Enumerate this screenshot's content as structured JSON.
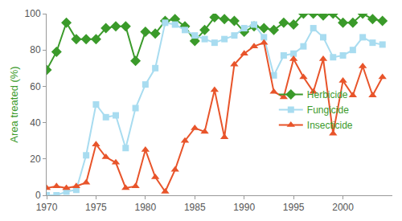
{
  "chart_data": {
    "type": "line",
    "x": [
      1970,
      1971,
      1972,
      1973,
      1974,
      1975,
      1976,
      1977,
      1978,
      1979,
      1980,
      1981,
      1982,
      1983,
      1984,
      1985,
      1986,
      1987,
      1988,
      1989,
      1990,
      1991,
      1992,
      1993,
      1994,
      1995,
      1996,
      1997,
      1998,
      1999,
      2000,
      2001,
      2002,
      2003,
      2004
    ],
    "y_label": "Area treated (%)",
    "series": [
      {
        "name": "Herbicide",
        "color": "#3a9a2a",
        "marker": "diamond",
        "values": [
          69,
          79,
          95,
          86,
          86,
          86,
          92,
          93,
          93,
          74,
          90,
          89,
          96,
          97,
          93,
          85,
          91,
          98,
          97,
          96,
          90,
          93,
          92,
          91,
          95,
          94,
          100,
          100,
          99,
          100,
          95,
          95,
          100,
          97,
          96
        ]
      },
      {
        "name": "Fungicide",
        "color": "#a8dcf0",
        "marker": "square",
        "values": [
          0,
          0,
          2,
          3,
          22,
          50,
          43,
          44,
          26,
          48,
          61,
          70,
          95,
          94,
          91,
          88,
          86,
          84,
          86,
          88,
          92,
          94,
          87,
          66,
          77,
          78,
          82,
          92,
          87,
          76,
          77,
          80,
          87,
          84,
          83
        ]
      },
      {
        "name": "Insecticide",
        "color": "#e8542a",
        "marker": "triangle",
        "values": [
          4,
          5,
          4,
          5,
          7,
          28,
          21,
          18,
          4,
          5,
          25,
          10,
          2,
          14,
          30,
          37,
          35,
          58,
          32,
          72,
          78,
          82,
          84,
          57,
          54,
          75,
          65,
          57,
          75,
          34,
          63,
          55,
          71,
          55,
          65
        ]
      }
    ],
    "xlim": [
      1970,
      2005
    ],
    "xticks": [
      1970,
      1975,
      1980,
      1985,
      1990,
      1995,
      2000
    ],
    "ylim": [
      0,
      100
    ],
    "yticks": [
      0,
      20,
      40,
      60,
      80,
      100
    ],
    "grid": false,
    "legend": "right"
  }
}
